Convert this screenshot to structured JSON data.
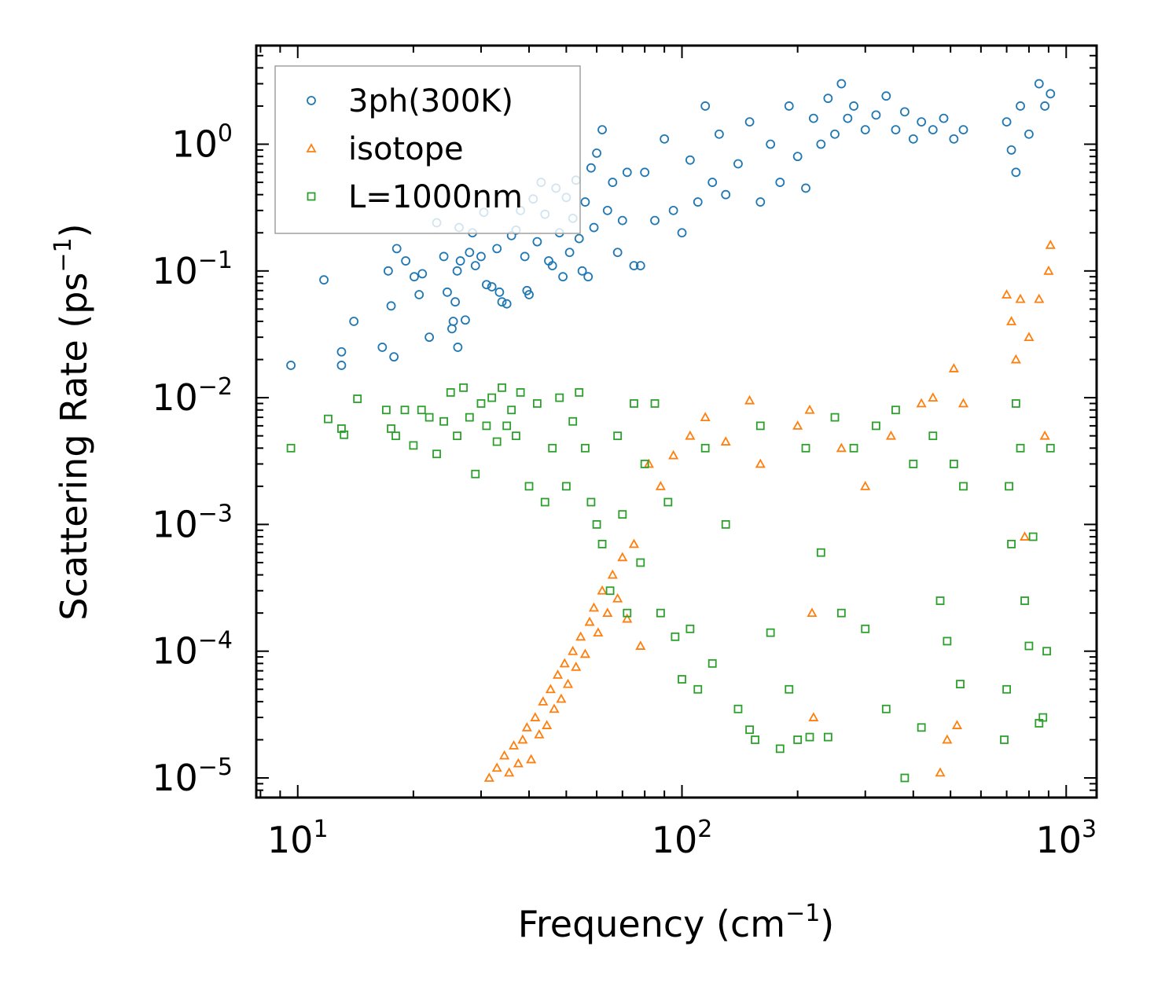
{
  "chart_data": {
    "type": "scatter",
    "title": "",
    "xlabel": "Frequency (cm⁻¹)",
    "ylabel": "Scattering Rate (ps⁻¹)",
    "xlabel_text": "Frequency (cm",
    "ylabel_text": "Scattering Rate (ps",
    "label_sup": "−1",
    "label_close": ")",
    "x_scale": "log",
    "y_scale": "log",
    "xlim": [
      7.8,
      1200
    ],
    "ylim": [
      7e-06,
      6
    ],
    "x_ticks": [
      {
        "value": 10,
        "base": "10",
        "exp": "1"
      },
      {
        "value": 100,
        "base": "10",
        "exp": "2"
      },
      {
        "value": 1000,
        "base": "10",
        "exp": "3"
      }
    ],
    "y_ticks": [
      {
        "value": 1,
        "base": "10",
        "exp": "0"
      },
      {
        "value": 0.1,
        "base": "10",
        "exp": "−1"
      },
      {
        "value": 0.01,
        "base": "10",
        "exp": "−2"
      },
      {
        "value": 0.001,
        "base": "10",
        "exp": "−3"
      },
      {
        "value": 0.0001,
        "base": "10",
        "exp": "−4"
      },
      {
        "value": 1e-05,
        "base": "10",
        "exp": "−5"
      }
    ],
    "grid": false,
    "legend_position": "top-left",
    "series": [
      {
        "name": "3ph(300K)",
        "marker": "circle",
        "color": "#1f77b4",
        "points": [
          [
            9.6,
            0.018
          ],
          [
            11.7,
            0.085
          ],
          [
            13.0,
            0.023
          ],
          [
            13.0,
            0.018
          ],
          [
            14.0,
            0.04
          ],
          [
            16.6,
            0.025
          ],
          [
            17.2,
            0.1
          ],
          [
            17.5,
            0.053
          ],
          [
            17.8,
            0.021
          ],
          [
            18.1,
            0.15
          ],
          [
            19.1,
            0.12
          ],
          [
            20.1,
            0.09
          ],
          [
            20.7,
            0.065
          ],
          [
            21.1,
            0.095
          ],
          [
            22.0,
            0.03
          ],
          [
            23.0,
            0.24
          ],
          [
            24.0,
            0.13
          ],
          [
            24.5,
            0.068
          ],
          [
            25.2,
            0.035
          ],
          [
            25.4,
            0.04
          ],
          [
            25.7,
            0.057
          ],
          [
            26.0,
            0.1
          ],
          [
            26.1,
            0.025
          ],
          [
            26.3,
            0.22
          ],
          [
            26.5,
            0.12
          ],
          [
            27.3,
            0.041
          ],
          [
            28.0,
            0.14
          ],
          [
            28.5,
            0.2
          ],
          [
            29.0,
            0.11
          ],
          [
            30.0,
            0.13
          ],
          [
            30.5,
            0.29
          ],
          [
            31.0,
            0.078
          ],
          [
            32.0,
            0.075
          ],
          [
            33.0,
            0.15
          ],
          [
            33.5,
            0.068
          ],
          [
            34.0,
            0.057
          ],
          [
            35.0,
            0.055
          ],
          [
            36.0,
            0.19
          ],
          [
            37.0,
            0.21
          ],
          [
            38.0,
            0.3
          ],
          [
            39.0,
            0.13
          ],
          [
            39.5,
            0.07
          ],
          [
            40.0,
            0.065
          ],
          [
            41.0,
            0.37
          ],
          [
            42.0,
            0.17
          ],
          [
            43.0,
            0.5
          ],
          [
            44.0,
            0.28
          ],
          [
            45.0,
            0.12
          ],
          [
            46.0,
            0.11
          ],
          [
            47.0,
            0.45
          ],
          [
            48.0,
            0.2
          ],
          [
            49.0,
            0.09
          ],
          [
            50.0,
            0.38
          ],
          [
            51.0,
            0.14
          ],
          [
            52.0,
            0.26
          ],
          [
            53.0,
            0.52
          ],
          [
            54.0,
            0.18
          ],
          [
            55.0,
            0.1
          ],
          [
            56.0,
            0.35
          ],
          [
            57.0,
            0.09
          ],
          [
            58.0,
            0.65
          ],
          [
            59.0,
            0.22
          ],
          [
            60.0,
            0.85
          ],
          [
            62.0,
            1.3
          ],
          [
            64.0,
            0.3
          ],
          [
            66.0,
            0.5
          ],
          [
            68.0,
            0.14
          ],
          [
            70.0,
            0.25
          ],
          [
            72.0,
            0.6
          ],
          [
            75.0,
            0.11
          ],
          [
            78.0,
            0.11
          ],
          [
            80.0,
            0.6
          ],
          [
            85.0,
            0.25
          ],
          [
            90.0,
            1.1
          ],
          [
            95.0,
            0.3
          ],
          [
            100.0,
            0.2
          ],
          [
            105.0,
            0.75
          ],
          [
            110.0,
            0.35
          ],
          [
            115.0,
            2.0
          ],
          [
            120.0,
            0.5
          ],
          [
            125.0,
            1.2
          ],
          [
            130.0,
            0.4
          ],
          [
            140.0,
            0.7
          ],
          [
            150.0,
            1.5
          ],
          [
            160.0,
            0.35
          ],
          [
            170.0,
            1.0
          ],
          [
            180.0,
            0.5
          ],
          [
            190.0,
            2.0
          ],
          [
            200.0,
            0.8
          ],
          [
            210.0,
            0.45
          ],
          [
            220.0,
            1.6
          ],
          [
            230.0,
            1.0
          ],
          [
            240.0,
            2.3
          ],
          [
            250.0,
            1.2
          ],
          [
            260.0,
            3.0
          ],
          [
            270.0,
            1.6
          ],
          [
            280.0,
            2.0
          ],
          [
            300.0,
            1.3
          ],
          [
            320.0,
            1.7
          ],
          [
            340.0,
            2.4
          ],
          [
            360.0,
            1.3
          ],
          [
            380.0,
            1.8
          ],
          [
            400.0,
            1.1
          ],
          [
            420.0,
            1.5
          ],
          [
            450.0,
            1.3
          ],
          [
            480.0,
            1.6
          ],
          [
            510.0,
            1.1
          ],
          [
            540.0,
            1.3
          ],
          [
            700.0,
            1.5
          ],
          [
            720.0,
            0.9
          ],
          [
            740.0,
            0.6
          ],
          [
            760.0,
            2.0
          ],
          [
            800.0,
            1.2
          ],
          [
            850.0,
            3.0
          ],
          [
            880.0,
            2.0
          ],
          [
            910.0,
            2.5
          ]
        ]
      },
      {
        "name": "isotope",
        "marker": "triangle",
        "color": "#ff7f0e",
        "points": [
          [
            31.5,
            1e-05
          ],
          [
            33.0,
            1.2e-05
          ],
          [
            34.5,
            1.5e-05
          ],
          [
            35.5,
            1.1e-05
          ],
          [
            36.5,
            1.8e-05
          ],
          [
            37.5,
            1.3e-05
          ],
          [
            38.5,
            2e-05
          ],
          [
            39.5,
            2.5e-05
          ],
          [
            40.5,
            1.4e-05
          ],
          [
            41.5,
            3e-05
          ],
          [
            42.5,
            2.2e-05
          ],
          [
            43.5,
            4e-05
          ],
          [
            44.5,
            2.6e-05
          ],
          [
            45.5,
            5e-05
          ],
          [
            46.5,
            3.5e-05
          ],
          [
            47.5,
            6.5e-05
          ],
          [
            48.5,
            4.2e-05
          ],
          [
            49.5,
            8e-05
          ],
          [
            50.5,
            5.5e-05
          ],
          [
            52.0,
            0.0001
          ],
          [
            53.0,
            7.5e-05
          ],
          [
            54.5,
            0.00013
          ],
          [
            56.0,
            9.5e-05
          ],
          [
            57.5,
            0.00017
          ],
          [
            59.0,
            0.00022
          ],
          [
            60.5,
            0.00014
          ],
          [
            62.0,
            0.0003
          ],
          [
            64.0,
            0.0002
          ],
          [
            66.0,
            0.0004
          ],
          [
            68.0,
            0.00026
          ],
          [
            70.0,
            0.00055
          ],
          [
            72.0,
            0.00018
          ],
          [
            75.0,
            0.0007
          ],
          [
            78.0,
            0.00011
          ],
          [
            82.0,
            0.003
          ],
          [
            88.0,
            0.002
          ],
          [
            95.0,
            0.0035
          ],
          [
            105.0,
            0.005
          ],
          [
            115.0,
            0.007
          ],
          [
            130.0,
            0.0045
          ],
          [
            150.0,
            0.0095
          ],
          [
            160.0,
            0.003
          ],
          [
            200.0,
            0.006
          ],
          [
            215.0,
            0.008
          ],
          [
            218.0,
            0.0002
          ],
          [
            220.0,
            3e-05
          ],
          [
            260.0,
            0.004
          ],
          [
            300.0,
            0.002
          ],
          [
            350.0,
            0.005
          ],
          [
            420.0,
            0.009
          ],
          [
            450.0,
            0.01
          ],
          [
            470.0,
            1.1e-05
          ],
          [
            490.0,
            2e-05
          ],
          [
            510.0,
            0.017
          ],
          [
            520.0,
            2.6e-05
          ],
          [
            540.0,
            0.009
          ],
          [
            700.0,
            0.065
          ],
          [
            720.0,
            0.04
          ],
          [
            740.0,
            0.02
          ],
          [
            760.0,
            0.06
          ],
          [
            780.0,
            0.0008
          ],
          [
            800.0,
            0.03
          ],
          [
            850.0,
            0.06
          ],
          [
            880.0,
            0.005
          ],
          [
            900.0,
            0.1
          ],
          [
            910.0,
            0.16
          ]
        ]
      },
      {
        "name": "L=1000nm",
        "marker": "square",
        "color": "#2ca02c",
        "points": [
          [
            9.6,
            0.004
          ],
          [
            12.0,
            0.0068
          ],
          [
            13.0,
            0.0057
          ],
          [
            13.2,
            0.0051
          ],
          [
            14.3,
            0.0098
          ],
          [
            17.0,
            0.008
          ],
          [
            17.5,
            0.0057
          ],
          [
            18.0,
            0.005
          ],
          [
            19.0,
            0.008
          ],
          [
            20.0,
            0.0042
          ],
          [
            21.0,
            0.008
          ],
          [
            22.0,
            0.007
          ],
          [
            23.0,
            0.0036
          ],
          [
            24.0,
            0.0065
          ],
          [
            25.0,
            0.011
          ],
          [
            26.0,
            0.005
          ],
          [
            27.0,
            0.012
          ],
          [
            28.0,
            0.007
          ],
          [
            29.0,
            0.0025
          ],
          [
            30.0,
            0.009
          ],
          [
            31.0,
            0.006
          ],
          [
            32.0,
            0.01
          ],
          [
            33.0,
            0.0045
          ],
          [
            34.0,
            0.012
          ],
          [
            35.0,
            0.006
          ],
          [
            36.0,
            0.008
          ],
          [
            37.0,
            0.005
          ],
          [
            38.0,
            0.011
          ],
          [
            40.0,
            0.002
          ],
          [
            42.0,
            0.009
          ],
          [
            44.0,
            0.0015
          ],
          [
            46.0,
            0.004
          ],
          [
            48.0,
            0.01
          ],
          [
            50.0,
            0.002
          ],
          [
            52.0,
            0.0065
          ],
          [
            54.0,
            0.011
          ],
          [
            56.0,
            0.004
          ],
          [
            58.0,
            0.0015
          ],
          [
            60.0,
            0.001
          ],
          [
            62.0,
            0.0007
          ],
          [
            65.0,
            0.0003
          ],
          [
            68.0,
            0.005
          ],
          [
            70.0,
            0.0012
          ],
          [
            72.0,
            0.0002
          ],
          [
            75.0,
            0.009
          ],
          [
            78.0,
            0.0005
          ],
          [
            80.0,
            0.003
          ],
          [
            85.0,
            0.009
          ],
          [
            88.0,
            0.0002
          ],
          [
            92.0,
            0.0015
          ],
          [
            96.0,
            0.00013
          ],
          [
            100.0,
            6e-05
          ],
          [
            105.0,
            0.00015
          ],
          [
            110.0,
            5e-05
          ],
          [
            115.0,
            0.004
          ],
          [
            120.0,
            8e-05
          ],
          [
            130.0,
            0.001
          ],
          [
            140.0,
            3.5e-05
          ],
          [
            150.0,
            2.4e-05
          ],
          [
            155.0,
            2e-05
          ],
          [
            160.0,
            0.006
          ],
          [
            170.0,
            0.00014
          ],
          [
            180.0,
            1.7e-05
          ],
          [
            190.0,
            5e-05
          ],
          [
            200.0,
            2e-05
          ],
          [
            210.0,
            0.004
          ],
          [
            215.0,
            2.1e-05
          ],
          [
            230.0,
            0.0006
          ],
          [
            240.0,
            2.1e-05
          ],
          [
            250.0,
            0.007
          ],
          [
            260.0,
            0.0002
          ],
          [
            280.0,
            0.004
          ],
          [
            300.0,
            0.00015
          ],
          [
            320.0,
            0.006
          ],
          [
            340.0,
            3.5e-05
          ],
          [
            360.0,
            0.008
          ],
          [
            380.0,
            1e-05
          ],
          [
            400.0,
            0.003
          ],
          [
            420.0,
            2.5e-05
          ],
          [
            450.0,
            0.005
          ],
          [
            470.0,
            0.00025
          ],
          [
            490.0,
            0.00012
          ],
          [
            510.0,
            0.003
          ],
          [
            530.0,
            5.5e-05
          ],
          [
            540.0,
            0.002
          ],
          [
            690.0,
            2e-05
          ],
          [
            700.0,
            5e-05
          ],
          [
            710.0,
            0.002
          ],
          [
            720.0,
            0.0007
          ],
          [
            740.0,
            0.009
          ],
          [
            760.0,
            0.004
          ],
          [
            780.0,
            0.00025
          ],
          [
            800.0,
            0.00011
          ],
          [
            820.0,
            0.0008
          ],
          [
            850.0,
            2.7e-05
          ],
          [
            870.0,
            3e-05
          ],
          [
            890.0,
            0.0001
          ],
          [
            910.0,
            0.004
          ]
        ]
      }
    ],
    "legend": [
      {
        "label": "3ph(300K)",
        "marker": "circle",
        "color": "#1f77b4"
      },
      {
        "label": "isotope",
        "marker": "triangle",
        "color": "#ff7f0e"
      },
      {
        "label": "L=1000nm",
        "marker": "square",
        "color": "#2ca02c"
      }
    ]
  }
}
